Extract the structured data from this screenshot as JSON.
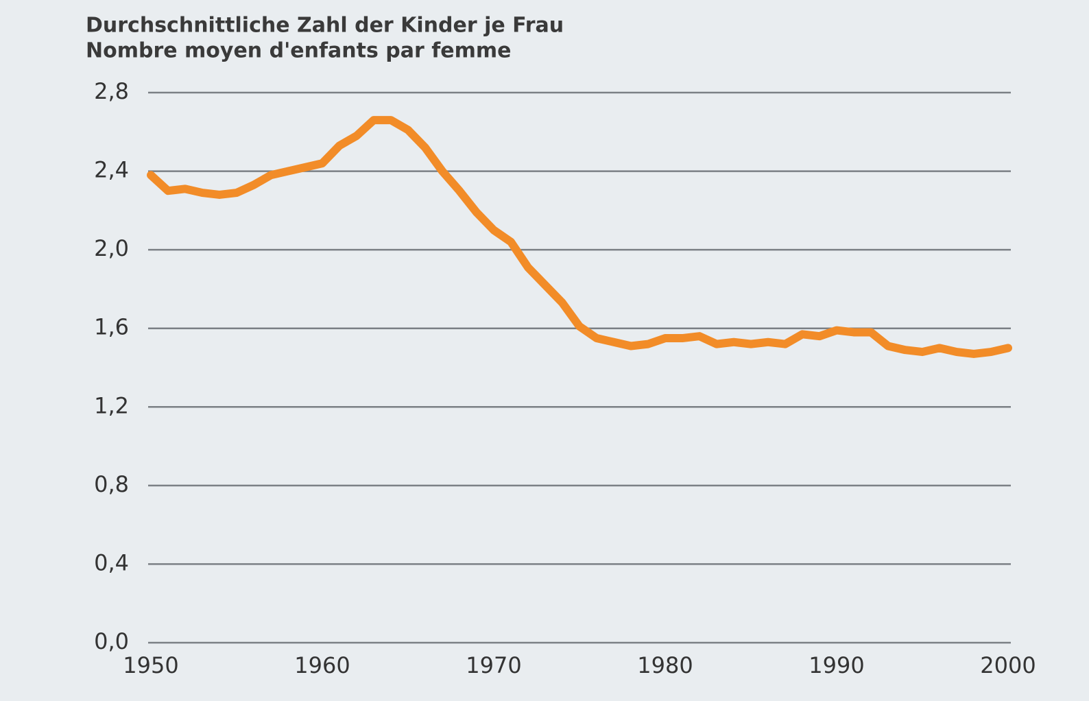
{
  "chart_data": {
    "type": "line",
    "title": "Durchschnittliche Zahl der Kinder je Frau",
    "subtitle": "Nombre moyen d'enfants par femme",
    "x": [
      1950,
      1951,
      1952,
      1953,
      1954,
      1955,
      1956,
      1957,
      1958,
      1959,
      1960,
      1961,
      1962,
      1963,
      1964,
      1965,
      1966,
      1967,
      1968,
      1969,
      1970,
      1971,
      1972,
      1973,
      1974,
      1975,
      1976,
      1977,
      1978,
      1979,
      1980,
      1981,
      1982,
      1983,
      1984,
      1985,
      1986,
      1987,
      1988,
      1989,
      1990,
      1991,
      1992,
      1993,
      1994,
      1995,
      1996,
      1997,
      1998,
      1999,
      2000
    ],
    "series": [
      {
        "color": "#f28c28",
        "values": [
          2.38,
          2.3,
          2.31,
          2.29,
          2.28,
          2.29,
          2.33,
          2.38,
          2.4,
          2.42,
          2.44,
          2.53,
          2.58,
          2.66,
          2.66,
          2.61,
          2.52,
          2.4,
          2.3,
          2.19,
          2.1,
          2.04,
          1.91,
          1.82,
          1.73,
          1.61,
          1.55,
          1.53,
          1.51,
          1.52,
          1.55,
          1.55,
          1.56,
          1.52,
          1.53,
          1.52,
          1.53,
          1.52,
          1.57,
          1.56,
          1.59,
          1.58,
          1.58,
          1.51,
          1.49,
          1.48,
          1.5,
          1.48,
          1.47,
          1.48,
          1.5
        ]
      }
    ],
    "xlim": [
      1950,
      2000
    ],
    "xticks": [
      1950,
      1960,
      1970,
      1980,
      1990,
      2000
    ],
    "ylim": [
      0,
      2.8
    ],
    "yticks": [
      {
        "value": 0,
        "label": "0,0"
      },
      {
        "value": 0.4,
        "label": "0,4"
      },
      {
        "value": 0.8,
        "label": "0,8"
      },
      {
        "value": 1.2,
        "label": "1,2"
      },
      {
        "value": 1.6,
        "label": "1,6"
      },
      {
        "value": 2.0,
        "label": "2,0"
      },
      {
        "value": 2.4,
        "label": "2,4"
      },
      {
        "value": 2.8,
        "label": "2,8"
      }
    ],
    "grid": true
  }
}
